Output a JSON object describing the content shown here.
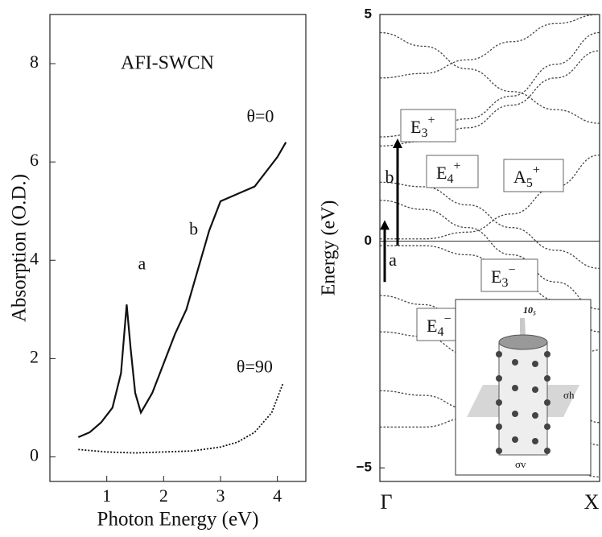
{
  "chart_data": [
    {
      "type": "line",
      "x_label": "Photon Energy (eV)",
      "y_label": "Absorption (O.D.)",
      "annotations": [
        "AFI-SWCN",
        "a",
        "b"
      ],
      "xlim": [
        0,
        4.5
      ],
      "xticks": [
        1,
        2,
        3,
        4
      ],
      "ylim": [
        -0.5,
        9
      ],
      "yticks": [
        0,
        2,
        4,
        6,
        8
      ],
      "series": [
        {
          "name": "θ=0",
          "color": "#111111",
          "dash": false,
          "x": [
            0.5,
            0.7,
            0.9,
            1.1,
            1.25,
            1.35,
            1.42,
            1.5,
            1.6,
            1.8,
            2.0,
            2.2,
            2.4,
            2.6,
            2.8,
            3.0,
            3.2,
            3.4,
            3.6,
            3.8,
            4.0,
            4.15
          ],
          "values": [
            0.4,
            0.5,
            0.7,
            1.0,
            1.7,
            3.1,
            2.2,
            1.3,
            0.9,
            1.3,
            1.9,
            2.5,
            3.0,
            3.8,
            4.6,
            5.2,
            5.3,
            5.4,
            5.5,
            5.8,
            6.1,
            6.4
          ]
        },
        {
          "name": "θ=90",
          "color": "#111111",
          "dash": true,
          "x": [
            0.5,
            1.0,
            1.5,
            2.0,
            2.5,
            3.0,
            3.3,
            3.6,
            3.9,
            4.1
          ],
          "values": [
            0.15,
            0.1,
            0.08,
            0.1,
            0.12,
            0.2,
            0.3,
            0.5,
            0.9,
            1.5
          ]
        }
      ]
    },
    {
      "type": "bands",
      "y_label": "Energy (eV)",
      "xlim": [
        0,
        1
      ],
      "xticks": [
        {
          "value": 0,
          "label": "Γ"
        },
        {
          "value": 1,
          "label": "X"
        }
      ],
      "ylim": [
        -5.3,
        5
      ],
      "yticks": [
        {
          "value": -5,
          "label": "−5"
        },
        0,
        5
      ],
      "fermi_level": 0,
      "x": [
        0,
        0.2,
        0.4,
        0.6,
        0.8,
        1
      ],
      "series": [
        {
          "values": [
            4.6,
            4.3,
            3.8,
            3.3,
            2.9,
            2.6
          ]
        },
        {
          "values": [
            2.1,
            2.2,
            2.5,
            3.0,
            3.6,
            4.2
          ]
        },
        {
          "values": [
            2.3,
            2.4,
            2.7,
            3.2,
            3.9,
            4.6
          ]
        },
        {
          "values": [
            1.3,
            1.2,
            0.8,
            0.3,
            -0.2,
            -0.6
          ]
        },
        {
          "values": [
            0.9,
            0.7,
            0.3,
            -0.3,
            -0.9,
            -1.5
          ]
        },
        {
          "values": [
            0.05,
            0.05,
            0.2,
            0.6,
            1.2,
            1.9
          ]
        },
        {
          "values": [
            -0.1,
            -0.1,
            -0.3,
            -0.7,
            -1.3,
            -2.0
          ]
        },
        {
          "values": [
            -1.2,
            -1.4,
            -1.9,
            -2.6,
            -3.3,
            -4.0
          ]
        },
        {
          "values": [
            -2.0,
            -2.1,
            -2.5,
            -3.1,
            -3.8,
            -4.5
          ]
        },
        {
          "values": [
            -3.3,
            -3.4,
            -3.7,
            -4.2,
            -4.9,
            -5.2
          ]
        },
        {
          "values": [
            3.6,
            3.7,
            4.0,
            4.4,
            4.8,
            5.0
          ]
        },
        {
          "values": [
            -4.1,
            -4.1,
            -3.9,
            -3.5,
            -3.0,
            -2.4
          ]
        }
      ],
      "transitions": [
        {
          "label": "a",
          "from": -0.9,
          "to": 0.5
        },
        {
          "label": "b",
          "from": -0.1,
          "to": 2.3
        }
      ],
      "band_labels": [
        {
          "base": "E",
          "sub": "3",
          "sup": "+"
        },
        {
          "base": "E",
          "sub": "4",
          "sup": "+"
        },
        {
          "base": "A",
          "sub": "5",
          "sup": "+"
        },
        {
          "base": "E",
          "sub": "3",
          "sup": "−"
        },
        {
          "base": "E",
          "sub": "4",
          "sup": "−"
        }
      ],
      "inset_labels": [
        "10₅",
        "σh",
        "σv"
      ]
    }
  ]
}
